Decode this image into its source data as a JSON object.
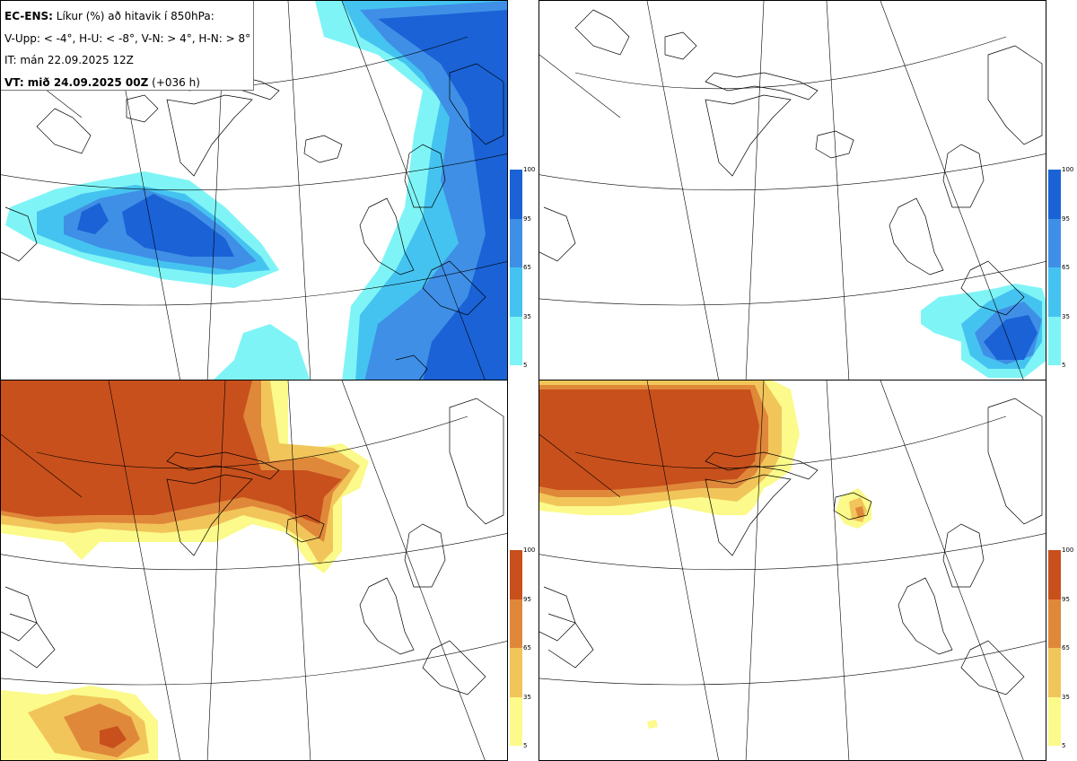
{
  "info": {
    "line1_bold": "EC-ENS:",
    "line1_rest": " Líkur (%) að hitavik í 850hPa:",
    "line2": "V-Upp: < -4°, H-U: < -8°, V-N: > 4°, H-N: > 8°",
    "line3": "IT: mán 22.09.2025 12Z",
    "line4_bold": "VT: mið 24.09.2025 00Z",
    "line4_rest": " (+036 h)"
  },
  "colorbar": {
    "ticks": [
      "100",
      "95",
      "65",
      "35",
      "5"
    ],
    "cold_colors": [
      "#1a62d6",
      "#3f8fe6",
      "#45c3f0",
      "#7ff4f6"
    ],
    "warm_colors": [
      "#c8501c",
      "#e0883a",
      "#f1c55a",
      "#fbfa8a"
    ]
  },
  "panels": [
    {
      "id": "vestur-upp",
      "role": "cold-lt-minus4",
      "palette": "cold"
    },
    {
      "id": "haust-upp",
      "role": "cold-lt-minus8",
      "palette": "cold"
    },
    {
      "id": "vestur-nidur",
      "role": "warm-gt-4",
      "palette": "warm"
    },
    {
      "id": "haust-nidur",
      "role": "warm-gt-8",
      "palette": "warm"
    }
  ]
}
